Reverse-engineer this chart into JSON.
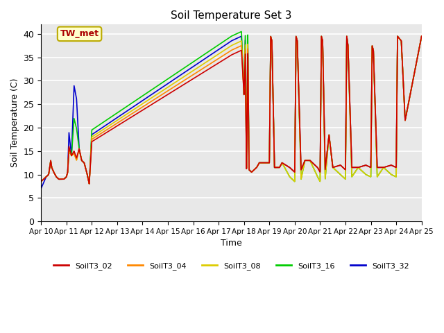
{
  "title": "Soil Temperature Set 3",
  "xlabel": "Time",
  "ylabel": "Soil Temperature (C)",
  "ylim": [
    0,
    42
  ],
  "yticks": [
    0,
    5,
    10,
    15,
    20,
    25,
    30,
    35,
    40
  ],
  "legend_labels": [
    "SoilT3_02",
    "SoilT3_04",
    "SoilT3_08",
    "SoilT3_16",
    "SoilT3_32"
  ],
  "colors": [
    "#cc0000",
    "#ff8800",
    "#ddcc00",
    "#00cc00",
    "#0000cc"
  ],
  "annotation_text": "TW_met",
  "annotation_color": "#aa0000",
  "annotation_bg": "#ffffcc",
  "bg_color": "#e8e8e8",
  "xtick_labels": [
    "Apr 10",
    "Apr 11",
    "Apr 12",
    "Apr 13",
    "Apr 14",
    "Apr 15",
    "Apr 16",
    "Apr 17",
    "Apr 18",
    "Apr 19",
    "Apr 20",
    "Apr 21",
    "Apr 22",
    "Apr 23",
    "Apr 24",
    "Apr 25"
  ]
}
